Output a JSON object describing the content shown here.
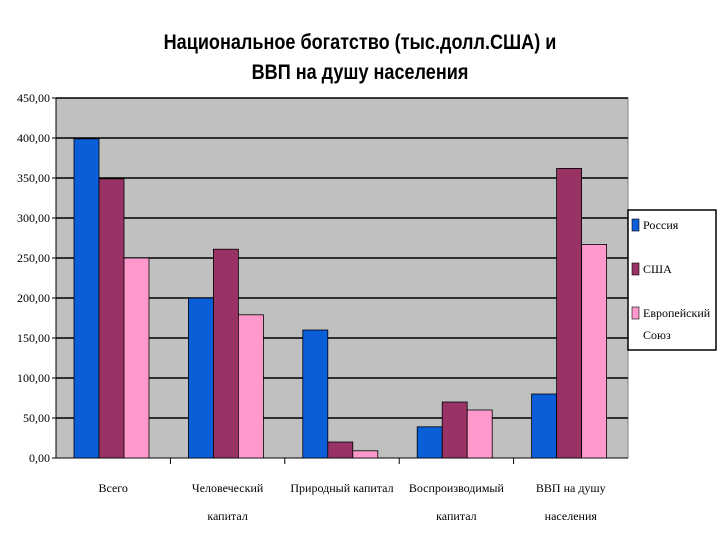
{
  "chart_data": {
    "type": "bar",
    "title_lines": [
      "Национальное богатство (тыс.долл.США) и",
      "ВВП на душу населения"
    ],
    "categories": [
      [
        "Всего"
      ],
      [
        "Человеческий",
        "капитал"
      ],
      [
        "Природный капитал"
      ],
      [
        "Воспроизводимый",
        "капитал"
      ],
      [
        "ВВП на душу",
        "населения"
      ]
    ],
    "series": [
      {
        "name": "Россия",
        "color": "#0a5ed7",
        "values": [
          399,
          200,
          160,
          39,
          80
        ]
      },
      {
        "name": "США",
        "color": "#993366",
        "values": [
          349,
          261,
          20,
          70,
          362
        ]
      },
      {
        "name": "Европейский Союз",
        "legend_lines": [
          "Европейский",
          "Союз"
        ],
        "color": "#ff99cc",
        "values": [
          250,
          179,
          9,
          60,
          267
        ]
      }
    ],
    "ylim": [
      0,
      450
    ],
    "y_ticks": [
      "0,00",
      "50,00",
      "100,00",
      "150,00",
      "200,00",
      "250,00",
      "300,00",
      "350,00",
      "400,00",
      "450,00"
    ],
    "grid": true,
    "plot_background": "#c0c0c0",
    "legend_position": "right"
  }
}
